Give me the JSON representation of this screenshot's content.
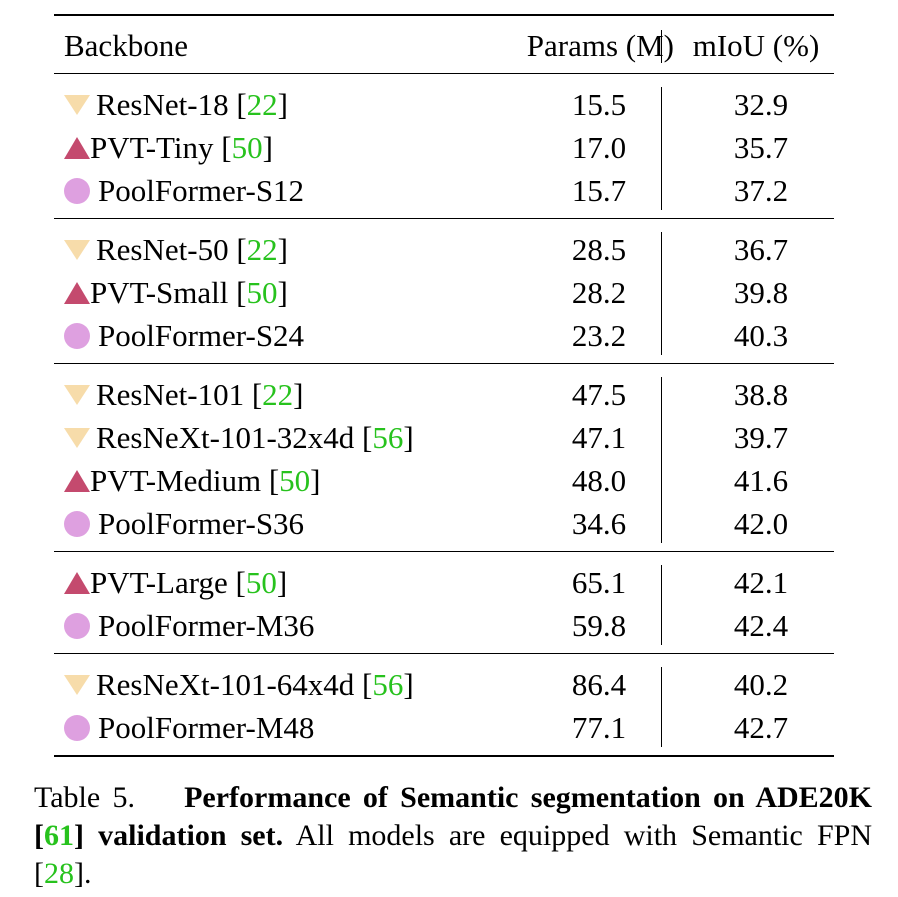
{
  "header": {
    "backbone": "Backbone",
    "params": "Params (M)",
    "miou": "mIoU (%)"
  },
  "groups": [
    {
      "rows": [
        {
          "marker": "tri-down",
          "name": "ResNet-18 ",
          "ref": "22",
          "params": "15.5",
          "miou": "32.9"
        },
        {
          "marker": "tri-up",
          "name": "PVT-Tiny ",
          "ref": "50",
          "params": "17.0",
          "miou": "35.7"
        },
        {
          "marker": "circle",
          "name": "PoolFormer-S12",
          "ref": "",
          "params": "15.7",
          "miou": "37.2"
        }
      ]
    },
    {
      "rows": [
        {
          "marker": "tri-down",
          "name": "ResNet-50 ",
          "ref": "22",
          "params": "28.5",
          "miou": "36.7"
        },
        {
          "marker": "tri-up",
          "name": "PVT-Small ",
          "ref": "50",
          "params": "28.2",
          "miou": "39.8"
        },
        {
          "marker": "circle",
          "name": "PoolFormer-S24",
          "ref": "",
          "params": "23.2",
          "miou": "40.3"
        }
      ]
    },
    {
      "rows": [
        {
          "marker": "tri-down",
          "name": "ResNet-101 ",
          "ref": "22",
          "params": "47.5",
          "miou": "38.8"
        },
        {
          "marker": "tri-down",
          "name": "ResNeXt-101-32x4d ",
          "ref": "56",
          "params": "47.1",
          "miou": "39.7"
        },
        {
          "marker": "tri-up",
          "name": "PVT-Medium ",
          "ref": "50",
          "params": "48.0",
          "miou": "41.6"
        },
        {
          "marker": "circle",
          "name": "PoolFormer-S36",
          "ref": "",
          "params": "34.6",
          "miou": "42.0"
        }
      ]
    },
    {
      "rows": [
        {
          "marker": "tri-up",
          "name": "PVT-Large ",
          "ref": "50",
          "params": "65.1",
          "miou": "42.1"
        },
        {
          "marker": "circle",
          "name": "PoolFormer-M36",
          "ref": "",
          "params": "59.8",
          "miou": "42.4"
        }
      ]
    },
    {
      "rows": [
        {
          "marker": "tri-down",
          "name": "ResNeXt-101-64x4d ",
          "ref": "56",
          "params": "86.4",
          "miou": "40.2"
        },
        {
          "marker": "circle",
          "name": "PoolFormer-M48",
          "ref": "",
          "params": "77.1",
          "miou": "42.7"
        }
      ]
    }
  ],
  "colors": {
    "resnet": "#f7dcaa",
    "pvt": "#c44a6e",
    "poolformer": "#dea0e0",
    "citation": "#27c21d"
  },
  "caption": {
    "label": "Table 5.",
    "bold_before": "Performance of Semantic segmentation on ADE20K ",
    "bold_ref": "61",
    "bold_after": " validation set.",
    "rest_before": " All models are equipped with Semantic FPN ",
    "rest_ref": "28",
    "rest_after": "."
  }
}
